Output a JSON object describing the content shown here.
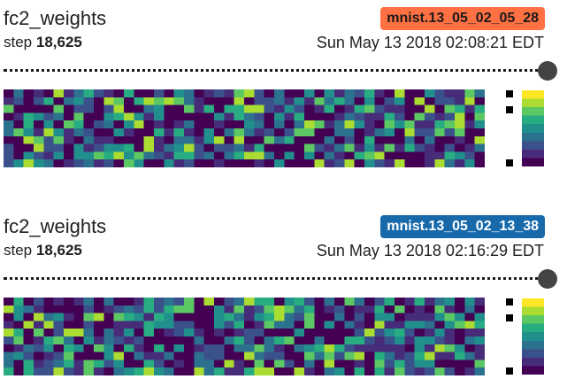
{
  "panels": [
    {
      "title": "fc2_weights",
      "run": "mnist.13_05_02_05_28",
      "run_color": "#ff7043",
      "run_text_color": "#1a1a1a",
      "step_label": "step",
      "step_value": "18,625",
      "timestamp": "Sun May 13 2018 02:08:21 EDT",
      "slider_value": 1.0,
      "seed": 7
    },
    {
      "title": "fc2_weights",
      "run": "mnist.13_05_02_13_38",
      "run_color": "#1769aa",
      "run_text_color": "#ffffff",
      "step_label": "step",
      "step_value": "18,625",
      "timestamp": "Sun May 13 2018 02:16:29 EDT",
      "slider_value": 1.0,
      "seed": 19
    }
  ],
  "heatmap": {
    "rows": 10,
    "cols": 48,
    "colormap": "viridis"
  },
  "colors": {
    "viridis": [
      "#440154",
      "#472c7a",
      "#3b518b",
      "#2c718e",
      "#21908d",
      "#27ad81",
      "#5cc863",
      "#aadc32",
      "#fde725"
    ]
  }
}
